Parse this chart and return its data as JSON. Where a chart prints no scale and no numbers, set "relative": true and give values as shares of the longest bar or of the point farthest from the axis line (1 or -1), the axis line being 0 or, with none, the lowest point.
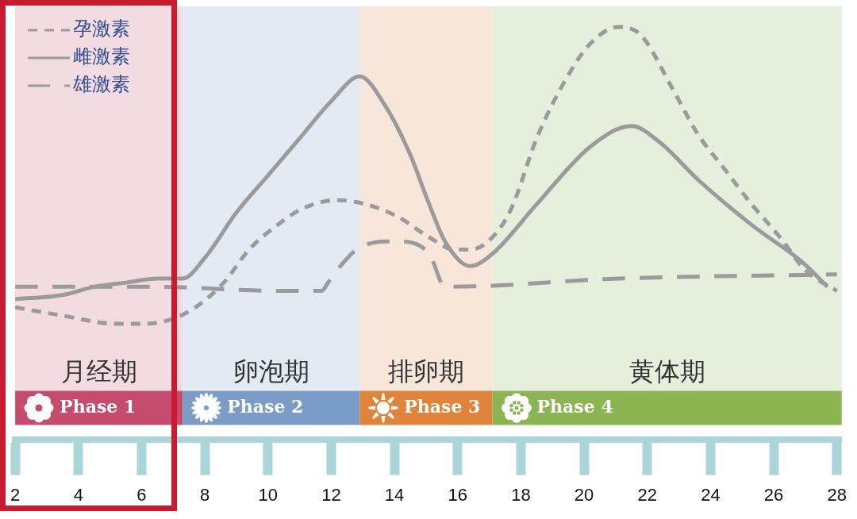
{
  "chart_data": {
    "type": "line",
    "relative": true,
    "legend": "top left",
    "xlim": [
      2,
      28.15
    ],
    "xticks": [
      2,
      4,
      6,
      8,
      10,
      12,
      14,
      16,
      18,
      20,
      22,
      24,
      26,
      28
    ],
    "series": [
      {
        "name": "孕激素",
        "color": "#9b9b9b",
        "line_style": "dotted",
        "x": [
          2,
          3.5,
          5.2,
          6,
          6.9,
          7.7,
          8.6,
          9.4,
          10.3,
          11.1,
          12.2,
          13.1,
          14.1,
          15.1,
          15.9,
          16.4,
          17.1,
          17.7,
          18.5,
          19.4,
          20.2,
          21.1,
          21.8,
          22.8,
          23.6,
          24.5,
          25.3,
          26.2,
          27,
          28
        ],
        "values": [
          0.32,
          0.3,
          0.28,
          0.28,
          0.29,
          0.32,
          0.38,
          0.46,
          0.52,
          0.56,
          0.58,
          0.57,
          0.54,
          0.49,
          0.46,
          0.46,
          0.49,
          0.56,
          0.73,
          0.87,
          0.96,
          1.0,
          0.98,
          0.85,
          0.74,
          0.65,
          0.57,
          0.49,
          0.41,
          0.36
        ]
      },
      {
        "name": "雌激素",
        "color": "#9b9b9b",
        "line_style": "solid",
        "x": [
          2,
          3.5,
          4.5,
          5.5,
          6.5,
          7.3,
          8,
          9,
          10,
          11,
          12,
          12.9,
          13.7,
          14.5,
          15.1,
          15.6,
          16.4,
          17.1,
          18.5,
          20.2,
          21.5,
          22.4,
          23.6,
          25.3,
          26.9,
          27.7
        ],
        "values": [
          0.34,
          0.35,
          0.37,
          0.38,
          0.39,
          0.39,
          0.44,
          0.55,
          0.64,
          0.73,
          0.82,
          0.88,
          0.81,
          0.69,
          0.57,
          0.48,
          0.42,
          0.45,
          0.57,
          0.71,
          0.76,
          0.72,
          0.63,
          0.52,
          0.43,
          0.37
        ]
      },
      {
        "name": "雄激素",
        "color": "#9b9b9b",
        "line_style": "dashed",
        "x": [
          2,
          6.4,
          10.3,
          11.7,
          11.9,
          12.4,
          12.8,
          13.7,
          14.1,
          15.1,
          15.6,
          15.8,
          21.1,
          28
        ],
        "values": [
          0.37,
          0.37,
          0.36,
          0.36,
          0.38,
          0.43,
          0.46,
          0.48,
          0.48,
          0.45,
          0.37,
          0.37,
          0.39,
          0.4
        ]
      }
    ],
    "bands": [
      {
        "axis": "x",
        "from": 2,
        "to": 7.3,
        "label": "月经期",
        "color": "#f2dce2"
      },
      {
        "axis": "x",
        "from": 7.3,
        "to": 12.9,
        "label": "卵泡期",
        "color": "#e4eaf3"
      },
      {
        "axis": "x",
        "from": 12.9,
        "to": 17.1,
        "label": "排卵期",
        "color": "#f8e6da"
      },
      {
        "axis": "x",
        "from": 17.1,
        "to": 28.15,
        "label": "黄体期",
        "color": "#e6efdb"
      },
      {
        "axis": "x",
        "from": 2,
        "to": 7.3,
        "label": "Phase 1",
        "color": "#c54b6f"
      },
      {
        "axis": "x",
        "from": 7.3,
        "to": 12.9,
        "label": "Phase 2",
        "color": "#7b9cc6"
      },
      {
        "axis": "x",
        "from": 12.9,
        "to": 17.1,
        "label": "Phase 3",
        "color": "#e0843b"
      },
      {
        "axis": "x",
        "from": 17.1,
        "to": 28.15,
        "label": "Phase 4",
        "color": "#8bb453"
      }
    ]
  }
}
